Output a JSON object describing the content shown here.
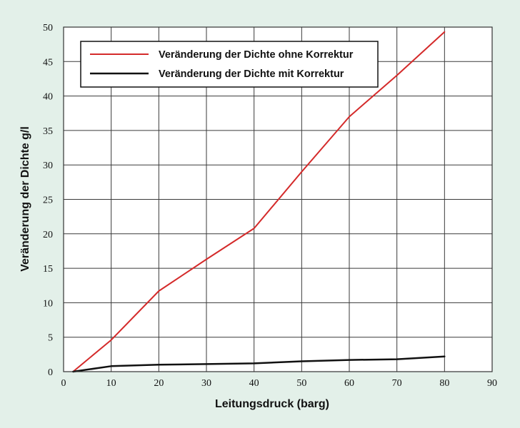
{
  "chart_data": {
    "type": "line",
    "xlabel": "Leitungsdruck (barg)",
    "ylabel": "Veränderung der Dichte g/l",
    "xlim": [
      0,
      90
    ],
    "ylim": [
      0,
      50
    ],
    "xticks": [
      0,
      10,
      20,
      30,
      40,
      50,
      60,
      70,
      80,
      90
    ],
    "yticks": [
      0,
      5,
      10,
      15,
      20,
      25,
      30,
      35,
      40,
      45,
      50
    ],
    "grid": true,
    "legend_position": "top-left",
    "series": [
      {
        "name": "Veränderung der Dichte ohne Korrektur",
        "color": "#d42a2a",
        "x": [
          2,
          10,
          20,
          30,
          40,
          50,
          60,
          70,
          80
        ],
        "y": [
          0,
          4.6,
          11.7,
          16.3,
          20.8,
          29.0,
          37.0,
          43.0,
          49.3
        ]
      },
      {
        "name": "Veränderung der Dichte mit Korrektur",
        "color": "#111111",
        "x": [
          2,
          10,
          20,
          30,
          40,
          50,
          60,
          70,
          80
        ],
        "y": [
          0,
          0.8,
          1.0,
          1.1,
          1.2,
          1.5,
          1.7,
          1.8,
          2.2
        ]
      }
    ]
  }
}
